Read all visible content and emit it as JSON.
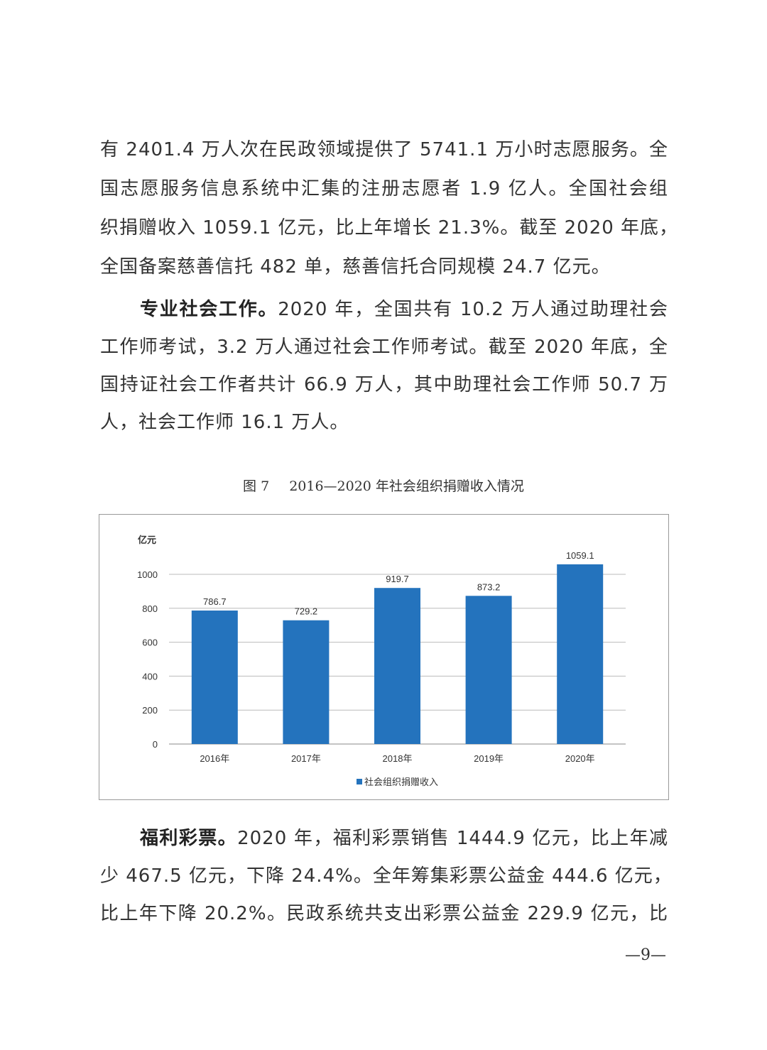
{
  "paragraphs": [
    {
      "lead": "",
      "lines": [
        "有 2401.4 万人次在民政领域提供了 5741.1 万小时志愿服务。全",
        "国志愿服务信息系统中汇集的注册志愿者 1.9 亿人。全国社会组",
        "织捐赠收入 1059.1 亿元，比上年增长 21.3%。截至 2020 年底，",
        "全国备案慈善信托 482 单，慈善信托合同规模 24.7 亿元。"
      ]
    },
    {
      "lead": "专业社会工作。",
      "lines": [
        "2020 年，全国共有 10.2 万人通过助理社会",
        "工作师考试，3.2 万人通过社会工作师考试。截至 2020 年底，全",
        "国持证社会工作者共计 66.9 万人，其中助理社会工作师 50.7 万",
        "人，社会工作师 16.1 万人。"
      ]
    },
    {
      "lead": "福利彩票。",
      "lines": [
        "2020 年，福利彩票销售 1444.9 亿元，比上年减",
        "少 467.5 亿元，下降 24.4%。全年筹集彩票公益金 444.6 亿元，",
        "比上年下降 20.2%。民政系统共支出彩票公益金 229.9 亿元，比"
      ]
    }
  ],
  "figure": {
    "number": "图 7",
    "title": "2016—2020 年社会组织捐赠收入情况"
  },
  "chart_data": {
    "type": "bar",
    "title": "",
    "ylabel": "亿元",
    "xlabel": "",
    "categories": [
      "2016年",
      "2017年",
      "2018年",
      "2019年",
      "2020年"
    ],
    "series": [
      {
        "name": "社会组织捐赠收入",
        "values": [
          786.7,
          729.2,
          919.7,
          873.2,
          1059.1
        ],
        "labels": [
          "786.7",
          "729.2",
          "919.7",
          "873.2",
          "1059.1"
        ],
        "color": "#2473bd"
      }
    ],
    "ylim": [
      0,
      1000
    ],
    "yticks": [
      "0",
      "200",
      "400",
      "600",
      "800",
      "1000"
    ],
    "grid": true,
    "legend": "bottom"
  },
  "page_number": "—9—"
}
